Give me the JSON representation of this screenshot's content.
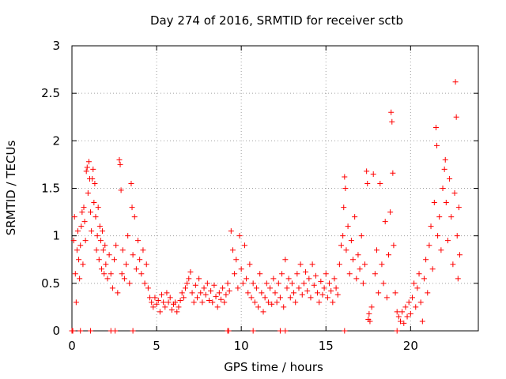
{
  "chart_data": {
    "type": "scatter",
    "title": "Day 274 of 2016, SRMTID for receiver sctb",
    "xlabel": "GPS time / hours",
    "ylabel": "SRMTID / TECUs",
    "xlim": [
      0,
      24
    ],
    "ylim": [
      0,
      3
    ],
    "xticks": [
      0,
      5,
      10,
      15,
      20
    ],
    "xtick_labels": [
      "0",
      "5",
      "10",
      "15",
      "20"
    ],
    "yticks": [
      0,
      0.5,
      1,
      1.5,
      2,
      2.5,
      3
    ],
    "ytick_labels": [
      "0",
      "0.5",
      "1",
      "1.5",
      "2",
      "2.5",
      "3"
    ],
    "grid": true,
    "marker": "+",
    "color": "#ff0000",
    "series": [
      {
        "name": "SRMTID",
        "points": [
          [
            0.1,
            0.95
          ],
          [
            0.15,
            1.2
          ],
          [
            0.2,
            0.6
          ],
          [
            0.25,
            0.3
          ],
          [
            0.3,
            0.85
          ],
          [
            0.35,
            1.05
          ],
          [
            0.4,
            0.75
          ],
          [
            0.45,
            0.55
          ],
          [
            0.5,
            0.9
          ],
          [
            0.55,
            1.1
          ],
          [
            0.6,
            1.25
          ],
          [
            0.65,
            0.7
          ],
          [
            0.7,
            1.3
          ],
          [
            0.75,
            1.15
          ],
          [
            0.8,
            0.95
          ],
          [
            0.85,
            1.68
          ],
          [
            0.9,
            1.72
          ],
          [
            0.95,
            1.45
          ],
          [
            1.0,
            1.78
          ],
          [
            1.05,
            1.6
          ],
          [
            1.1,
            1.25
          ],
          [
            1.15,
            1.05
          ],
          [
            1.2,
            1.6
          ],
          [
            1.25,
            1.7
          ],
          [
            1.3,
            1.35
          ],
          [
            1.35,
            1.55
          ],
          [
            1.4,
            1.2
          ],
          [
            1.45,
            0.85
          ],
          [
            1.5,
            1.0
          ],
          [
            1.55,
            1.3
          ],
          [
            1.6,
            0.75
          ],
          [
            1.65,
            1.1
          ],
          [
            1.7,
            0.95
          ],
          [
            1.75,
            0.65
          ],
          [
            1.8,
            1.05
          ],
          [
            1.85,
            0.85
          ],
          [
            1.9,
            0.6
          ],
          [
            1.95,
            0.9
          ],
          [
            2.0,
            0.7
          ],
          [
            2.1,
            0.55
          ],
          [
            2.2,
            0.8
          ],
          [
            2.3,
            0.6
          ],
          [
            2.4,
            0.45
          ],
          [
            2.5,
            0.75
          ],
          [
            2.6,
            0.9
          ],
          [
            2.7,
            0.4
          ],
          [
            2.8,
            1.8
          ],
          [
            2.85,
            1.75
          ],
          [
            2.9,
            1.48
          ],
          [
            2.95,
            0.6
          ],
          [
            3.0,
            0.85
          ],
          [
            3.1,
            0.55
          ],
          [
            3.2,
            0.7
          ],
          [
            3.3,
            1.0
          ],
          [
            3.4,
            0.5
          ],
          [
            3.5,
            1.55
          ],
          [
            3.55,
            1.3
          ],
          [
            3.6,
            0.8
          ],
          [
            3.7,
            1.2
          ],
          [
            3.8,
            0.65
          ],
          [
            3.9,
            0.95
          ],
          [
            4.0,
            0.75
          ],
          [
            4.1,
            0.6
          ],
          [
            4.2,
            0.85
          ],
          [
            4.3,
            0.5
          ],
          [
            4.4,
            0.7
          ],
          [
            4.5,
            0.45
          ],
          [
            4.6,
            0.35
          ],
          [
            4.7,
            0.3
          ],
          [
            4.8,
            0.25
          ],
          [
            4.9,
            0.35
          ],
          [
            5.0,
            0.28
          ],
          [
            5.1,
            0.32
          ],
          [
            5.2,
            0.2
          ],
          [
            5.3,
            0.38
          ],
          [
            5.4,
            0.3
          ],
          [
            5.5,
            0.25
          ],
          [
            5.6,
            0.4
          ],
          [
            5.7,
            0.3
          ],
          [
            5.8,
            0.35
          ],
          [
            5.9,
            0.22
          ],
          [
            6.0,
            0.28
          ],
          [
            6.1,
            0.3
          ],
          [
            6.2,
            0.2
          ],
          [
            6.3,
            0.25
          ],
          [
            6.4,
            0.32
          ],
          [
            6.5,
            0.4
          ],
          [
            6.6,
            0.35
          ],
          [
            6.7,
            0.45
          ],
          [
            6.8,
            0.5
          ],
          [
            6.9,
            0.55
          ],
          [
            7.0,
            0.62
          ],
          [
            7.1,
            0.4
          ],
          [
            7.2,
            0.3
          ],
          [
            7.3,
            0.48
          ],
          [
            7.4,
            0.35
          ],
          [
            7.5,
            0.55
          ],
          [
            7.6,
            0.4
          ],
          [
            7.7,
            0.3
          ],
          [
            7.8,
            0.45
          ],
          [
            7.9,
            0.38
          ],
          [
            8.0,
            0.5
          ],
          [
            8.1,
            0.32
          ],
          [
            8.2,
            0.42
          ],
          [
            8.3,
            0.3
          ],
          [
            8.4,
            0.48
          ],
          [
            8.5,
            0.36
          ],
          [
            8.6,
            0.25
          ],
          [
            8.7,
            0.4
          ],
          [
            8.8,
            0.33
          ],
          [
            8.9,
            0.45
          ],
          [
            9.0,
            0.3
          ],
          [
            9.1,
            0.38
          ],
          [
            9.2,
            0.5
          ],
          [
            9.3,
            0.42
          ],
          [
            9.4,
            1.05
          ],
          [
            9.5,
            0.85
          ],
          [
            9.6,
            0.6
          ],
          [
            9.7,
            0.75
          ],
          [
            9.8,
            0.45
          ],
          [
            9.9,
            1.0
          ],
          [
            10.0,
            0.65
          ],
          [
            10.1,
            0.5
          ],
          [
            10.2,
            0.9
          ],
          [
            10.3,
            0.55
          ],
          [
            10.4,
            0.4
          ],
          [
            10.5,
            0.7
          ],
          [
            10.6,
            0.35
          ],
          [
            10.7,
            0.5
          ],
          [
            10.8,
            0.3
          ],
          [
            10.9,
            0.45
          ],
          [
            11.0,
            0.25
          ],
          [
            11.1,
            0.6
          ],
          [
            11.2,
            0.4
          ],
          [
            11.3,
            0.2
          ],
          [
            11.4,
            0.35
          ],
          [
            11.5,
            0.5
          ],
          [
            11.6,
            0.3
          ],
          [
            11.7,
            0.45
          ],
          [
            11.8,
            0.28
          ],
          [
            11.9,
            0.55
          ],
          [
            12.0,
            0.4
          ],
          [
            12.1,
            0.3
          ],
          [
            12.2,
            0.5
          ],
          [
            12.3,
            0.35
          ],
          [
            12.4,
            0.6
          ],
          [
            12.5,
            0.25
          ],
          [
            12.6,
            0.75
          ],
          [
            12.7,
            0.45
          ],
          [
            12.8,
            0.55
          ],
          [
            12.9,
            0.35
          ],
          [
            13.0,
            0.5
          ],
          [
            13.1,
            0.4
          ],
          [
            13.2,
            0.3
          ],
          [
            13.3,
            0.6
          ],
          [
            13.4,
            0.45
          ],
          [
            13.5,
            0.7
          ],
          [
            13.6,
            0.38
          ],
          [
            13.7,
            0.5
          ],
          [
            13.8,
            0.62
          ],
          [
            13.9,
            0.42
          ],
          [
            14.0,
            0.55
          ],
          [
            14.1,
            0.35
          ],
          [
            14.2,
            0.7
          ],
          [
            14.3,
            0.48
          ],
          [
            14.4,
            0.58
          ],
          [
            14.5,
            0.4
          ],
          [
            14.6,
            0.3
          ],
          [
            14.7,
            0.52
          ],
          [
            14.8,
            0.38
          ],
          [
            14.9,
            0.45
          ],
          [
            15.0,
            0.6
          ],
          [
            15.1,
            0.35
          ],
          [
            15.2,
            0.5
          ],
          [
            15.3,
            0.42
          ],
          [
            15.4,
            0.3
          ],
          [
            15.5,
            0.55
          ],
          [
            15.6,
            0.45
          ],
          [
            15.7,
            0.38
          ],
          [
            15.8,
            0.7
          ],
          [
            15.9,
            0.9
          ],
          [
            16.0,
            1.0
          ],
          [
            16.05,
            1.3
          ],
          [
            16.1,
            1.62
          ],
          [
            16.15,
            1.5
          ],
          [
            16.2,
            0.85
          ],
          [
            16.3,
            1.1
          ],
          [
            16.4,
            0.6
          ],
          [
            16.5,
            0.95
          ],
          [
            16.6,
            0.75
          ],
          [
            16.7,
            1.2
          ],
          [
            16.8,
            0.55
          ],
          [
            16.9,
            0.8
          ],
          [
            17.0,
            0.65
          ],
          [
            17.1,
            1.0
          ],
          [
            17.2,
            0.5
          ],
          [
            17.3,
            0.7
          ],
          [
            17.4,
            1.68
          ],
          [
            17.45,
            1.55
          ],
          [
            17.5,
            0.12
          ],
          [
            17.55,
            0.18
          ],
          [
            17.6,
            0.1
          ],
          [
            17.7,
            0.25
          ],
          [
            17.8,
            1.65
          ],
          [
            17.9,
            0.6
          ],
          [
            18.0,
            0.85
          ],
          [
            18.1,
            0.4
          ],
          [
            18.2,
            1.55
          ],
          [
            18.3,
            0.7
          ],
          [
            18.4,
            0.5
          ],
          [
            18.5,
            1.15
          ],
          [
            18.6,
            0.35
          ],
          [
            18.7,
            0.8
          ],
          [
            18.8,
            1.25
          ],
          [
            18.85,
            2.3
          ],
          [
            18.9,
            2.2
          ],
          [
            18.95,
            1.66
          ],
          [
            19.0,
            0.9
          ],
          [
            19.1,
            0.4
          ],
          [
            19.2,
            0.2
          ],
          [
            19.3,
            0.15
          ],
          [
            19.4,
            0.1
          ],
          [
            19.5,
            0.2
          ],
          [
            19.6,
            0.08
          ],
          [
            19.7,
            0.25
          ],
          [
            19.8,
            0.15
          ],
          [
            19.9,
            0.3
          ],
          [
            20.0,
            0.18
          ],
          [
            20.1,
            0.35
          ],
          [
            20.2,
            0.5
          ],
          [
            20.3,
            0.25
          ],
          [
            20.4,
            0.45
          ],
          [
            20.5,
            0.6
          ],
          [
            20.6,
            0.3
          ],
          [
            20.7,
            0.1
          ],
          [
            20.8,
            0.55
          ],
          [
            20.9,
            0.75
          ],
          [
            21.0,
            0.4
          ],
          [
            21.1,
            0.9
          ],
          [
            21.2,
            1.1
          ],
          [
            21.3,
            0.65
          ],
          [
            21.4,
            1.35
          ],
          [
            21.5,
            2.14
          ],
          [
            21.55,
            1.95
          ],
          [
            21.6,
            1.0
          ],
          [
            21.7,
            1.2
          ],
          [
            21.8,
            0.85
          ],
          [
            21.9,
            1.5
          ],
          [
            22.0,
            1.7
          ],
          [
            22.05,
            1.8
          ],
          [
            22.1,
            1.35
          ],
          [
            22.2,
            0.95
          ],
          [
            22.3,
            1.6
          ],
          [
            22.4,
            1.2
          ],
          [
            22.5,
            0.7
          ],
          [
            22.6,
            1.45
          ],
          [
            22.65,
            2.62
          ],
          [
            22.7,
            2.25
          ],
          [
            22.75,
            1.0
          ],
          [
            22.8,
            0.55
          ],
          [
            22.85,
            1.3
          ],
          [
            22.9,
            0.8
          ]
        ]
      }
    ],
    "zero_markers_x": [
      0.0,
      0.05,
      0.5,
      1.1,
      2.3,
      2.55,
      3.6,
      9.2,
      9.25,
      10.7,
      12.3,
      12.6,
      16.1,
      19.2
    ]
  }
}
